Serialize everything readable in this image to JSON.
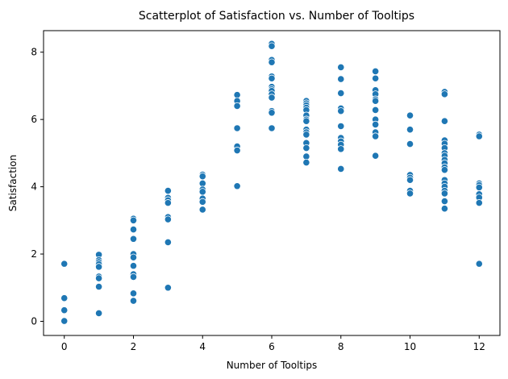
{
  "chart_data": {
    "type": "scatter",
    "title": "Scatterplot of Satisfaction vs. Number of Tooltips",
    "xlabel": "Number of Tooltips",
    "ylabel": "Satisfaction",
    "xlim": [
      -0.6,
      12.6
    ],
    "ylim": [
      -0.42,
      8.64
    ],
    "xticks": [
      0,
      2,
      4,
      6,
      8,
      10,
      12
    ],
    "yticks": [
      0,
      2,
      4,
      6,
      8
    ],
    "marker_color": "#1f77b4",
    "grid": false,
    "points": [
      [
        0,
        1.71
      ],
      [
        0,
        0.69
      ],
      [
        0,
        0.33
      ],
      [
        0,
        0.01
      ],
      [
        1,
        1.98
      ],
      [
        1,
        1.82
      ],
      [
        1,
        1.76
      ],
      [
        1,
        1.7
      ],
      [
        1,
        1.62
      ],
      [
        1,
        1.33
      ],
      [
        1,
        1.28
      ],
      [
        1,
        1.03
      ],
      [
        1,
        0.24
      ],
      [
        2,
        3.05
      ],
      [
        2,
        3.0
      ],
      [
        2,
        2.73
      ],
      [
        2,
        2.45
      ],
      [
        2,
        2.0
      ],
      [
        2,
        1.9
      ],
      [
        2,
        1.65
      ],
      [
        2,
        1.4
      ],
      [
        2,
        1.32
      ],
      [
        2,
        0.83
      ],
      [
        2,
        0.61
      ],
      [
        3,
        3.88
      ],
      [
        3,
        3.67
      ],
      [
        3,
        3.6
      ],
      [
        3,
        3.52
      ],
      [
        3,
        3.1
      ],
      [
        3,
        3.03
      ],
      [
        3,
        2.35
      ],
      [
        3,
        1.0
      ],
      [
        4,
        4.36
      ],
      [
        4,
        4.31
      ],
      [
        4,
        4.1
      ],
      [
        4,
        3.92
      ],
      [
        4,
        3.85
      ],
      [
        4,
        3.65
      ],
      [
        4,
        3.55
      ],
      [
        4,
        3.32
      ],
      [
        5,
        6.73
      ],
      [
        5,
        6.55
      ],
      [
        5,
        6.4
      ],
      [
        5,
        5.74
      ],
      [
        5,
        5.2
      ],
      [
        5,
        5.08
      ],
      [
        5,
        4.02
      ],
      [
        6,
        8.25
      ],
      [
        6,
        8.18
      ],
      [
        6,
        7.77
      ],
      [
        6,
        7.7
      ],
      [
        6,
        7.28
      ],
      [
        6,
        7.22
      ],
      [
        6,
        6.97
      ],
      [
        6,
        6.9
      ],
      [
        6,
        6.85
      ],
      [
        6,
        6.75
      ],
      [
        6,
        6.65
      ],
      [
        6,
        6.25
      ],
      [
        6,
        6.2
      ],
      [
        6,
        5.74
      ],
      [
        7,
        6.55
      ],
      [
        7,
        6.48
      ],
      [
        7,
        6.42
      ],
      [
        7,
        6.35
      ],
      [
        7,
        6.28
      ],
      [
        7,
        6.12
      ],
      [
        7,
        6.0
      ],
      [
        7,
        5.95
      ],
      [
        7,
        5.7
      ],
      [
        7,
        5.62
      ],
      [
        7,
        5.55
      ],
      [
        7,
        5.3
      ],
      [
        7,
        5.15
      ],
      [
        7,
        4.9
      ],
      [
        7,
        4.72
      ],
      [
        8,
        7.55
      ],
      [
        8,
        7.2
      ],
      [
        8,
        6.78
      ],
      [
        8,
        6.33
      ],
      [
        8,
        6.25
      ],
      [
        8,
        5.8
      ],
      [
        8,
        5.45
      ],
      [
        8,
        5.35
      ],
      [
        8,
        5.25
      ],
      [
        8,
        5.12
      ],
      [
        8,
        4.53
      ],
      [
        9,
        7.43
      ],
      [
        9,
        7.22
      ],
      [
        9,
        6.87
      ],
      [
        9,
        6.75
      ],
      [
        9,
        6.6
      ],
      [
        9,
        6.55
      ],
      [
        9,
        6.28
      ],
      [
        9,
        6.0
      ],
      [
        9,
        5.85
      ],
      [
        9,
        5.62
      ],
      [
        9,
        5.5
      ],
      [
        9,
        4.92
      ],
      [
        10,
        6.12
      ],
      [
        10,
        5.7
      ],
      [
        10,
        5.27
      ],
      [
        10,
        4.35
      ],
      [
        10,
        4.27
      ],
      [
        10,
        4.2
      ],
      [
        10,
        3.88
      ],
      [
        10,
        3.8
      ],
      [
        11,
        6.82
      ],
      [
        11,
        6.75
      ],
      [
        11,
        5.95
      ],
      [
        11,
        5.38
      ],
      [
        11,
        5.28
      ],
      [
        11,
        5.15
      ],
      [
        11,
        5.0
      ],
      [
        11,
        4.92
      ],
      [
        11,
        4.8
      ],
      [
        11,
        4.7
      ],
      [
        11,
        4.58
      ],
      [
        11,
        4.5
      ],
      [
        11,
        4.2
      ],
      [
        11,
        4.1
      ],
      [
        11,
        4.0
      ],
      [
        11,
        3.88
      ],
      [
        11,
        3.8
      ],
      [
        11,
        3.57
      ],
      [
        11,
        3.35
      ],
      [
        12,
        5.55
      ],
      [
        12,
        5.5
      ],
      [
        12,
        4.1
      ],
      [
        12,
        4.05
      ],
      [
        12,
        3.98
      ],
      [
        12,
        3.78
      ],
      [
        12,
        3.68
      ],
      [
        12,
        3.52
      ],
      [
        12,
        1.71
      ]
    ]
  }
}
